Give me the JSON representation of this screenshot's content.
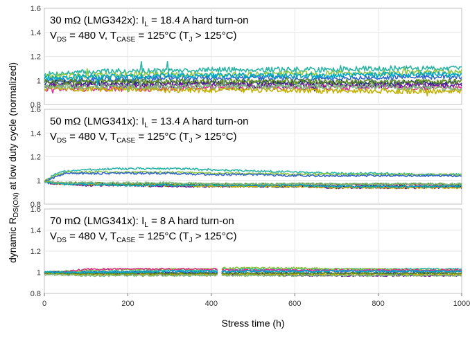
{
  "chart_data": {
    "type": "line",
    "xlabel": "Stress time (h)",
    "ylabel": "dynamic R_DS(ON) at low duty cycle (normalized)",
    "ylabel_parts": {
      "pre": "dynamic R",
      "sub": "DS(ON)",
      "post": " at low duty cycle (normalized)"
    },
    "xlim": [
      0,
      1000
    ],
    "ylim": [
      0.8,
      1.6
    ],
    "x_ticks": [
      0,
      200,
      400,
      600,
      800,
      1000
    ],
    "y_ticks": [
      0.8,
      1,
      1.2,
      1.4,
      1.6
    ],
    "y_tick_labels": [
      "0.8",
      "1",
      "1.2",
      "1.4",
      "1.6"
    ],
    "grid": true,
    "series_colors": [
      "#2bb5a6",
      "#8cc63f",
      "#3366cc",
      "#e0358f",
      "#1a2e7a",
      "#6a1b9a",
      "#c0b000",
      "#5b8c1e",
      "#00a8c6",
      "#7fb77e"
    ],
    "panels": [
      {
        "annotation_line1": {
          "pre": "30 mΩ (LMG342x): I",
          "sub": "L",
          "post": " = 18.4 A hard turn-on"
        },
        "annotation_line2": {
          "v": "V",
          "vsub": "DS",
          "mid": " = 480 V, T",
          "tsub": "CASE",
          "mid2": " = 125°C (T",
          "jsub": "J",
          "post": " > 125°C)"
        },
        "series": [
          {
            "x": [
              0,
              100,
              200,
              300,
              400,
              500,
              600,
              700,
              800,
              900,
              1000
            ],
            "values": [
              1.05,
              1.07,
              1.08,
              1.08,
              1.09,
              1.09,
              1.09,
              1.09,
              1.1,
              1.1,
              1.1
            ]
          },
          {
            "x": [
              0,
              100,
              200,
              300,
              400,
              500,
              600,
              700,
              800,
              900,
              1000
            ],
            "values": [
              1.03,
              1.04,
              1.05,
              1.05,
              1.05,
              1.05,
              1.06,
              1.06,
              1.06,
              1.07,
              1.07
            ]
          },
          {
            "x": [
              0,
              100,
              200,
              300,
              400,
              500,
              600,
              700,
              800,
              900,
              1000
            ],
            "values": [
              1.0,
              1.01,
              1.01,
              1.02,
              1.02,
              1.02,
              1.02,
              1.02,
              1.02,
              1.03,
              1.03
            ]
          },
          {
            "x": [
              0,
              100,
              200,
              300,
              400,
              500,
              600,
              700,
              800,
              900,
              1000
            ],
            "values": [
              0.93,
              0.93,
              0.93,
              0.93,
              0.94,
              0.94,
              0.94,
              0.94,
              0.94,
              0.94,
              0.94
            ]
          },
          {
            "x": [
              0,
              100,
              200,
              300,
              400,
              500,
              600,
              700,
              800,
              900,
              1000
            ],
            "values": [
              0.98,
              0.98,
              0.98,
              0.98,
              0.98,
              0.98,
              0.98,
              0.98,
              0.98,
              0.98,
              0.98
            ]
          },
          {
            "x": [
              0,
              100,
              200,
              300,
              400,
              500,
              600,
              700,
              800,
              900,
              1000
            ],
            "values": [
              0.96,
              0.96,
              0.96,
              0.96,
              0.97,
              0.96,
              0.96,
              0.96,
              0.96,
              0.96,
              0.96
            ]
          },
          {
            "x": [
              0,
              100,
              200,
              300,
              400,
              500,
              600,
              700,
              800,
              900,
              1000
            ],
            "values": [
              0.94,
              0.93,
              0.93,
              0.92,
              0.92,
              0.92,
              0.92,
              0.91,
              0.91,
              0.91,
              0.91
            ]
          },
          {
            "x": [
              0,
              100,
              200,
              300,
              400,
              500,
              600,
              700,
              800,
              900,
              1000
            ],
            "values": [
              0.99,
              0.99,
              0.99,
              0.99,
              0.99,
              0.99,
              0.99,
              0.99,
              0.99,
              0.99,
              0.99
            ]
          },
          {
            "x": [
              0,
              100,
              200,
              300,
              400,
              500,
              600,
              700,
              800,
              900,
              1000
            ],
            "values": [
              1.02,
              1.03,
              1.03,
              1.04,
              1.04,
              1.04,
              1.04,
              1.04,
              1.05,
              1.05,
              1.05
            ]
          },
          {
            "x": [
              0,
              100,
              200,
              300,
              400,
              500,
              600,
              700,
              800,
              900,
              1000
            ],
            "values": [
              0.95,
              0.95,
              0.95,
              0.95,
              0.95,
              0.95,
              0.95,
              0.95,
              0.95,
              0.94,
              0.94
            ]
          }
        ]
      },
      {
        "annotation_line1": {
          "pre": "50 mΩ (LMG341x): I",
          "sub": "L",
          "post": " = 13.4 A hard turn-on"
        },
        "annotation_line2": {
          "v": "V",
          "vsub": "DS",
          "mid": " = 480 V, T",
          "tsub": "CASE",
          "mid2": " = 125°C (T",
          "jsub": "J",
          "post": " > 125°C)"
        },
        "series": [
          {
            "x": [
              0,
              20,
              50,
              100,
              200,
              300,
              400,
              500,
              600,
              700,
              800,
              900,
              1000
            ],
            "values": [
              0.99,
              1.04,
              1.08,
              1.09,
              1.1,
              1.1,
              1.09,
              1.08,
              1.07,
              1.06,
              1.06,
              1.05,
              1.05
            ]
          },
          {
            "x": [
              0,
              20,
              50,
              100,
              200,
              300,
              400,
              500,
              600,
              700,
              800,
              900,
              1000
            ],
            "values": [
              0.99,
              1.03,
              1.07,
              1.07,
              1.07,
              1.07,
              1.06,
              1.06,
              1.05,
              1.05,
              1.05,
              1.05,
              1.05
            ]
          },
          {
            "x": [
              0,
              20,
              50,
              100,
              200,
              300,
              400,
              500,
              600,
              700,
              800,
              900,
              1000
            ],
            "values": [
              0.99,
              1.02,
              1.06,
              1.06,
              1.06,
              1.06,
              1.05,
              1.05,
              1.04,
              1.04,
              1.04,
              1.04,
              1.04
            ]
          },
          {
            "x": [
              0,
              20,
              50,
              100,
              200,
              300,
              400,
              500,
              600,
              700,
              800,
              900,
              1000
            ],
            "values": [
              0.99,
              0.98,
              0.98,
              0.97,
              0.97,
              0.96,
              0.96,
              0.96,
              0.96,
              0.96,
              0.96,
              0.96,
              0.96
            ]
          },
          {
            "x": [
              0,
              20,
              50,
              100,
              200,
              300,
              400,
              500,
              600,
              700,
              800,
              900,
              1000
            ],
            "values": [
              0.99,
              0.98,
              0.97,
              0.97,
              0.96,
              0.96,
              0.96,
              0.95,
              0.95,
              0.95,
              0.95,
              0.95,
              0.95
            ]
          },
          {
            "x": [
              0,
              20,
              50,
              100,
              200,
              300,
              400,
              500,
              600,
              700,
              800,
              900,
              1000
            ],
            "values": [
              0.99,
              0.97,
              0.97,
              0.96,
              0.96,
              0.95,
              0.95,
              0.95,
              0.95,
              0.94,
              0.94,
              0.94,
              0.94
            ]
          },
          {
            "x": [
              0,
              20,
              50,
              100,
              200,
              300,
              400,
              500,
              600,
              700,
              800,
              900,
              1000
            ],
            "values": [
              0.99,
              0.98,
              0.97,
              0.97,
              0.96,
              0.96,
              0.95,
              0.95,
              0.95,
              0.94,
              0.94,
              0.94,
              0.94
            ]
          },
          {
            "x": [
              0,
              20,
              50,
              100,
              200,
              300,
              400,
              500,
              600,
              700,
              800,
              900,
              1000
            ],
            "values": [
              0.99,
              0.98,
              0.98,
              0.98,
              0.97,
              0.97,
              0.97,
              0.97,
              0.97,
              0.97,
              0.97,
              0.97,
              0.97
            ]
          },
          {
            "x": [
              0,
              20,
              50,
              100,
              200,
              300,
              400,
              500,
              600,
              700,
              800,
              900,
              1000
            ],
            "values": [
              0.99,
              0.98,
              0.97,
              0.97,
              0.96,
              0.96,
              0.96,
              0.96,
              0.96,
              0.95,
              0.95,
              0.95,
              0.95
            ]
          },
          {
            "x": [
              0,
              20,
              50,
              100,
              200,
              300,
              400,
              500,
              600,
              700,
              800,
              900,
              1000
            ],
            "values": [
              0.99,
              0.99,
              0.98,
              0.98,
              0.98,
              0.98,
              0.97,
              0.97,
              0.97,
              0.97,
              0.97,
              0.97,
              0.97
            ]
          }
        ]
      },
      {
        "annotation_line1": {
          "pre": "70 mΩ (LMG341x): I",
          "sub": "L",
          "post": " = 8 A hard turn-on"
        },
        "annotation_line2": {
          "v": "V",
          "vsub": "DS",
          "mid": " = 480 V, T",
          "tsub": "CASE",
          "mid2": " = 125°C (T",
          "jsub": "J",
          "post": " > 125°C)"
        },
        "series": [
          {
            "x": [
              0,
              100,
              200,
              300,
              410,
              430,
              500,
              600,
              700,
              800,
              900,
              1000
            ],
            "values": [
              1.0,
              1.01,
              1.01,
              1.02,
              1.02,
              1.03,
              1.03,
              1.03,
              1.03,
              1.03,
              1.03,
              1.03
            ]
          },
          {
            "x": [
              0,
              100,
              200,
              300,
              410,
              430,
              500,
              600,
              700,
              800,
              900,
              1000
            ],
            "values": [
              1.0,
              1.02,
              1.03,
              1.03,
              1.03,
              1.04,
              1.04,
              1.04,
              1.03,
              1.03,
              1.02,
              1.02
            ]
          },
          {
            "x": [
              0,
              100,
              200,
              300,
              410,
              430,
              500,
              600,
              700,
              800,
              900,
              1000
            ],
            "values": [
              1.0,
              1.0,
              1.0,
              1.0,
              1.0,
              1.01,
              1.01,
              1.01,
              1.01,
              1.01,
              1.01,
              1.01
            ]
          },
          {
            "x": [
              0,
              100,
              200,
              300,
              410,
              430,
              500,
              600,
              700,
              800,
              900,
              1000
            ],
            "values": [
              0.98,
              1.03,
              1.03,
              1.03,
              1.03,
              1.02,
              1.02,
              1.02,
              1.02,
              1.02,
              1.02,
              1.02
            ]
          },
          {
            "x": [
              0,
              100,
              200,
              300,
              410,
              430,
              500,
              600,
              700,
              800,
              900,
              1000
            ],
            "values": [
              1.0,
              0.99,
              0.99,
              0.99,
              0.99,
              0.99,
              0.99,
              0.99,
              0.99,
              0.99,
              0.99,
              0.99
            ]
          },
          {
            "x": [
              0,
              100,
              200,
              300,
              410,
              430,
              500,
              600,
              700,
              800,
              900,
              1000
            ],
            "values": [
              0.99,
              0.98,
              0.98,
              0.98,
              0.98,
              0.98,
              0.98,
              0.97,
              0.97,
              0.97,
              0.97,
              0.97
            ]
          },
          {
            "x": [
              0,
              100,
              200,
              300,
              410,
              430,
              500,
              600,
              700,
              800,
              900,
              1000
            ],
            "values": [
              0.99,
              0.98,
              0.98,
              0.98,
              0.98,
              0.98,
              0.98,
              0.98,
              0.98,
              0.98,
              0.98,
              0.98
            ]
          },
          {
            "x": [
              0,
              100,
              200,
              300,
              410,
              430,
              500,
              600,
              700,
              800,
              900,
              1000
            ],
            "values": [
              0.99,
              0.99,
              0.99,
              0.99,
              0.99,
              0.99,
              0.99,
              0.99,
              0.99,
              0.99,
              0.99,
              0.99
            ]
          },
          {
            "x": [
              0,
              100,
              200,
              300,
              410,
              430,
              500,
              600,
              700,
              800,
              900,
              1000
            ],
            "values": [
              1.0,
              1.0,
              1.0,
              1.01,
              1.01,
              1.01,
              1.01,
              1.01,
              1.01,
              1.01,
              1.01,
              1.01
            ]
          },
          {
            "x": [
              0,
              100,
              200,
              300,
              410,
              430,
              500,
              600,
              700,
              800,
              900,
              1000
            ],
            "values": [
              0.98,
              0.97,
              0.97,
              0.97,
              0.97,
              0.97,
              0.97,
              0.97,
              0.97,
              0.97,
              0.97,
              0.97
            ]
          }
        ]
      }
    ]
  }
}
